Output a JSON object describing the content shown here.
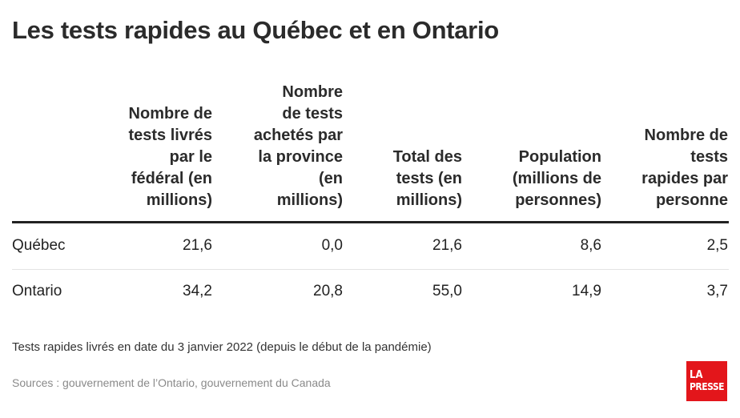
{
  "title": "Les tests rapides au Québec et en Ontario",
  "columns": [
    {
      "lines": [
        "Nombre de",
        "tests livrés",
        "par le",
        "fédéral (en",
        "millions)"
      ]
    },
    {
      "lines": [
        "Nombre",
        "de tests",
        "achetés par",
        "la province",
        "(en",
        "millions)"
      ]
    },
    {
      "lines": [
        "Total des",
        "tests (en",
        "millions)"
      ]
    },
    {
      "lines": [
        "Population",
        "(millions de",
        "personnes)"
      ]
    },
    {
      "lines": [
        "Nombre de",
        "tests",
        "rapides par",
        "personne"
      ]
    }
  ],
  "rows": [
    {
      "label": "Québec",
      "values": [
        "21,6",
        "0,0",
        "21,6",
        "8,6",
        "2,5"
      ]
    },
    {
      "label": "Ontario",
      "values": [
        "34,2",
        "20,8",
        "55,0",
        "14,9",
        "3,7"
      ]
    }
  ],
  "note": "Tests rapides livrés en date du 3 janvier 2022 (depuis le début de la pandémie)",
  "sources": "Sources : gouvernement de l’Ontario, gouvernement du Canada",
  "logo": {
    "line1": "LA",
    "line2": "PRESSE",
    "color": "#e3161b"
  },
  "chart_data": {
    "type": "table",
    "title": "Les tests rapides au Québec et en Ontario",
    "columns": [
      "Nombre de tests livrés par le fédéral (en millions)",
      "Nombre de tests achetés par la province (en millions)",
      "Total des tests (en millions)",
      "Population (millions de personnes)",
      "Nombre de tests rapides par personne"
    ],
    "rows": [
      {
        "label": "Québec",
        "values": [
          21.6,
          0.0,
          21.6,
          8.6,
          2.5
        ]
      },
      {
        "label": "Ontario",
        "values": [
          34.2,
          20.8,
          55.0,
          14.9,
          3.7
        ]
      }
    ]
  }
}
